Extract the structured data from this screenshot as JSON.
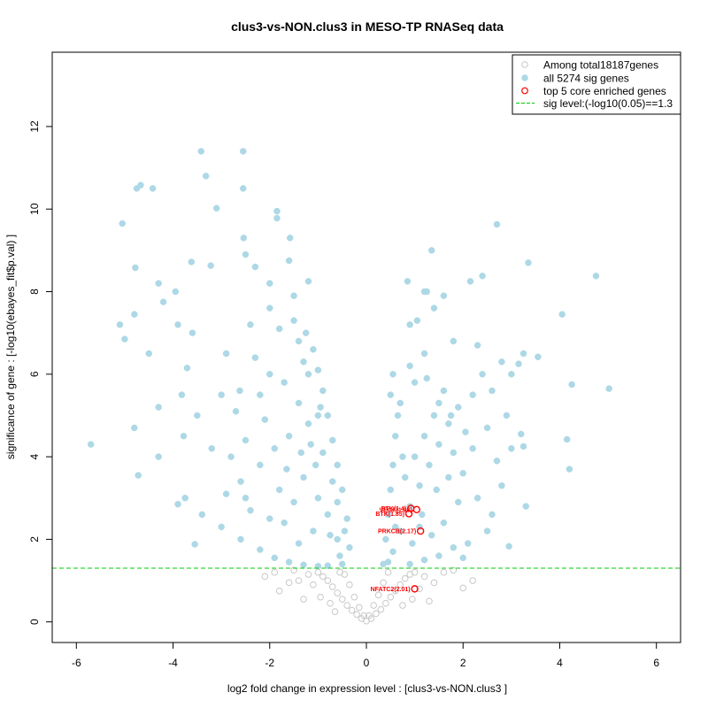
{
  "chart_data": {
    "type": "scatter",
    "title": "clus3-vs-NON.clus3 in MESO-TP RNASeq data",
    "xlabel": "log2 fold change in expression level : [clus3-vs-NON.clus3 ]",
    "ylabel": "significance of gene : [-log10(ebayes_fit$p.val) ]",
    "xlim": [
      -6.5,
      6.5
    ],
    "ylim": [
      -0.5,
      13.8
    ],
    "xticks": [
      -6,
      -4,
      -2,
      0,
      2,
      4,
      6
    ],
    "yticks": [
      0,
      2,
      4,
      6,
      8,
      10,
      12
    ],
    "xtick_labels": [
      "-6",
      "-4",
      "-2",
      "0",
      "2",
      "4",
      "6"
    ],
    "ytick_labels": [
      "0",
      "2",
      "4",
      "6",
      "8",
      "10",
      "12"
    ],
    "sig_threshold": 1.3,
    "legend": {
      "position": "top-right",
      "items": [
        {
          "label": "Among total18187genes",
          "marker": "open-circle",
          "color": "#c8c8c8"
        },
        {
          "label": "all 5274 sig genes",
          "marker": "filled-circle",
          "color": "#add8e6"
        },
        {
          "label": "top 5 core enriched genes",
          "marker": "open-circle",
          "color": "#ff0000"
        },
        {
          "label": "sig level:(-log10(0.05)==1.3",
          "marker": "dashed-line",
          "color": "#00cc00"
        }
      ]
    },
    "series": [
      {
        "name": "all 5274 sig genes",
        "color": "#add8e6",
        "points": [
          [
            -5.7,
            4.3
          ],
          [
            -5.05,
            9.65
          ],
          [
            -5.1,
            7.2
          ],
          [
            -5.0,
            6.85
          ],
          [
            -4.8,
            4.7
          ],
          [
            -4.72,
            3.55
          ],
          [
            -4.78,
            8.58
          ],
          [
            -4.75,
            10.5
          ],
          [
            -4.67,
            10.58
          ],
          [
            -4.42,
            10.5
          ],
          [
            -4.8,
            7.45
          ],
          [
            -4.5,
            6.5
          ],
          [
            -4.3,
            8.2
          ],
          [
            -4.3,
            5.2
          ],
          [
            -4.3,
            4.0
          ],
          [
            -4.2,
            7.75
          ],
          [
            -3.95,
            8.0
          ],
          [
            -3.9,
            7.2
          ],
          [
            -3.82,
            5.5
          ],
          [
            -3.78,
            4.5
          ],
          [
            -3.71,
            6.15
          ],
          [
            -3.62,
            8.72
          ],
          [
            -3.6,
            7.0
          ],
          [
            -3.5,
            5.0
          ],
          [
            -3.42,
            11.4
          ],
          [
            -3.32,
            10.8
          ],
          [
            -3.22,
            8.63
          ],
          [
            -3.1,
            10.02
          ],
          [
            -2.9,
            6.5
          ],
          [
            -2.62,
            5.6
          ],
          [
            -2.55,
            11.4
          ],
          [
            -2.55,
            10.5
          ],
          [
            -2.54,
            9.3
          ],
          [
            -2.5,
            8.9
          ],
          [
            -2.3,
            8.6
          ],
          [
            -2.0,
            8.2
          ],
          [
            -1.85,
            9.95
          ],
          [
            -1.85,
            9.78
          ],
          [
            -1.6,
            8.75
          ],
          [
            -1.58,
            9.3
          ],
          [
            -1.5,
            7.9
          ],
          [
            -1.3,
            6.3
          ],
          [
            -1.25,
            7.0
          ],
          [
            -1.2,
            6.0
          ],
          [
            -1.0,
            5.0
          ],
          [
            -0.6,
            2.0
          ],
          [
            -3.55,
            1.88
          ],
          [
            -2.9,
            3.1
          ],
          [
            -2.6,
            3.4
          ],
          [
            -2.2,
            3.8
          ],
          [
            -2.4,
            2.7
          ],
          [
            -3.2,
            4.2
          ],
          [
            -3.75,
            3.0
          ],
          [
            -3.9,
            2.85
          ],
          [
            -3.4,
            2.6
          ],
          [
            -3.0,
            2.3
          ],
          [
            -2.6,
            2.0
          ],
          [
            -2.2,
            1.75
          ],
          [
            -1.9,
            1.55
          ],
          [
            -1.6,
            1.45
          ],
          [
            -1.3,
            1.38
          ],
          [
            -1.0,
            1.35
          ],
          [
            -0.8,
            1.36
          ],
          [
            -0.5,
            1.4
          ],
          [
            -0.35,
            1.8
          ],
          [
            -0.4,
            2.5
          ],
          [
            -0.5,
            3.2
          ],
          [
            -0.6,
            3.8
          ],
          [
            -0.7,
            4.4
          ],
          [
            -0.8,
            5.0
          ],
          [
            -0.9,
            5.6
          ],
          [
            -1.0,
            6.1
          ],
          [
            -1.1,
            6.6
          ],
          [
            -1.5,
            7.3
          ],
          [
            -1.8,
            7.1
          ],
          [
            -2.0,
            6.0
          ],
          [
            -2.2,
            5.5
          ],
          [
            -1.7,
            5.8
          ],
          [
            -1.4,
            5.3
          ],
          [
            -1.2,
            4.8
          ],
          [
            -1.6,
            4.5
          ],
          [
            -1.9,
            4.2
          ],
          [
            -2.1,
            4.9
          ],
          [
            -2.5,
            4.4
          ],
          [
            -2.7,
            5.1
          ],
          [
            -2.3,
            6.4
          ],
          [
            -1.3,
            3.5
          ],
          [
            -1.0,
            3.0
          ],
          [
            -0.8,
            2.6
          ],
          [
            -1.1,
            2.2
          ],
          [
            -1.5,
            2.9
          ],
          [
            -1.8,
            3.2
          ],
          [
            -2.0,
            2.5
          ],
          [
            -1.4,
            1.9
          ],
          [
            -0.9,
            4.1
          ],
          [
            -1.05,
            3.8
          ],
          [
            -0.7,
            3.4
          ],
          [
            -0.6,
            2.9
          ],
          [
            -1.7,
            2.4
          ],
          [
            -2.5,
            3.0
          ],
          [
            -2.8,
            4.0
          ],
          [
            -3.0,
            5.5
          ],
          [
            -2.4,
            7.2
          ],
          [
            -2.0,
            7.6
          ],
          [
            -1.2,
            8.25
          ],
          [
            -1.4,
            6.8
          ],
          [
            -0.95,
            5.2
          ],
          [
            -1.15,
            4.3
          ],
          [
            -1.35,
            4.1
          ],
          [
            -1.65,
            3.7
          ],
          [
            -0.75,
            2.1
          ],
          [
            -0.55,
            1.6
          ],
          [
            -0.45,
            2.2
          ],
          [
            0.35,
            1.4
          ],
          [
            0.4,
            2.0
          ],
          [
            0.45,
            2.6
          ],
          [
            0.5,
            3.2
          ],
          [
            0.55,
            3.8
          ],
          [
            0.6,
            4.5
          ],
          [
            0.65,
            5.0
          ],
          [
            0.5,
            5.5
          ],
          [
            0.55,
            6.0
          ],
          [
            0.9,
            1.4
          ],
          [
            1.2,
            1.5
          ],
          [
            1.5,
            1.6
          ],
          [
            1.8,
            1.8
          ],
          [
            2.1,
            1.9
          ],
          [
            2.0,
            1.55
          ],
          [
            0.7,
            2.2
          ],
          [
            0.9,
            2.8
          ],
          [
            1.1,
            3.3
          ],
          [
            1.3,
            3.8
          ],
          [
            1.5,
            4.3
          ],
          [
            1.7,
            4.8
          ],
          [
            1.9,
            5.2
          ],
          [
            2.2,
            5.5
          ],
          [
            2.4,
            6.0
          ],
          [
            0.8,
            3.5
          ],
          [
            1.0,
            4.0
          ],
          [
            1.2,
            4.5
          ],
          [
            1.4,
            5.0
          ],
          [
            1.6,
            5.6
          ],
          [
            1.0,
            5.8
          ],
          [
            0.9,
            6.2
          ],
          [
            1.2,
            6.5
          ],
          [
            0.9,
            7.2
          ],
          [
            1.05,
            7.3
          ],
          [
            1.4,
            7.6
          ],
          [
            1.2,
            8.0
          ],
          [
            0.85,
            8.25
          ],
          [
            1.35,
            9.0
          ],
          [
            1.25,
            8.0
          ],
          [
            1.5,
            5.3
          ],
          [
            1.8,
            4.1
          ],
          [
            2.0,
            3.6
          ],
          [
            2.3,
            3.0
          ],
          [
            2.6,
            2.6
          ],
          [
            2.8,
            3.3
          ],
          [
            3.0,
            4.2
          ],
          [
            3.2,
            4.55
          ],
          [
            3.25,
            4.25
          ],
          [
            3.3,
            2.8
          ],
          [
            2.95,
            1.83
          ],
          [
            2.5,
            2.2
          ],
          [
            2.7,
            3.9
          ],
          [
            2.9,
            5.0
          ],
          [
            2.6,
            5.6
          ],
          [
            2.8,
            6.3
          ],
          [
            3.0,
            6.0
          ],
          [
            3.15,
            6.25
          ],
          [
            3.25,
            6.5
          ],
          [
            3.55,
            6.42
          ],
          [
            3.35,
            8.7
          ],
          [
            2.4,
            8.38
          ],
          [
            2.7,
            9.63
          ],
          [
            2.15,
            8.25
          ],
          [
            4.05,
            7.45
          ],
          [
            4.75,
            8.38
          ],
          [
            4.25,
            5.75
          ],
          [
            5.02,
            5.65
          ],
          [
            4.15,
            4.42
          ],
          [
            4.2,
            3.7
          ],
          [
            1.6,
            7.9
          ],
          [
            1.8,
            6.8
          ],
          [
            2.3,
            6.7
          ],
          [
            0.6,
            2.3
          ],
          [
            0.75,
            4.0
          ],
          [
            1.1,
            2.3
          ],
          [
            1.35,
            2.1
          ],
          [
            1.6,
            2.4
          ],
          [
            1.9,
            2.9
          ],
          [
            2.2,
            4.2
          ],
          [
            2.5,
            4.7
          ],
          [
            0.7,
            5.3
          ],
          [
            1.25,
            5.9
          ],
          [
            1.75,
            5.0
          ],
          [
            2.05,
            4.6
          ],
          [
            0.95,
            1.9
          ],
          [
            1.15,
            2.6
          ],
          [
            1.45,
            3.2
          ],
          [
            0.55,
            1.7
          ],
          [
            0.45,
            1.45
          ],
          [
            1.7,
            3.5
          ]
        ]
      },
      {
        "name": "Among total18187genes",
        "color": "#c8c8c8",
        "points": [
          [
            -0.1,
            0.08
          ],
          [
            -0.2,
            0.18
          ],
          [
            -0.3,
            0.28
          ],
          [
            -0.4,
            0.4
          ],
          [
            -0.5,
            0.55
          ],
          [
            -0.6,
            0.7
          ],
          [
            -0.7,
            0.85
          ],
          [
            -0.8,
            1.0
          ],
          [
            -0.9,
            1.1
          ],
          [
            -1.0,
            1.2
          ],
          [
            -1.2,
            1.15
          ],
          [
            -1.4,
            1.0
          ],
          [
            -1.5,
            1.25
          ],
          [
            -1.6,
            0.95
          ],
          [
            -1.8,
            0.75
          ],
          [
            -1.9,
            1.2
          ],
          [
            -0.25,
            0.6
          ],
          [
            -0.35,
            0.9
          ],
          [
            -0.45,
            1.15
          ],
          [
            -0.55,
            1.2
          ],
          [
            -0.15,
            0.35
          ],
          [
            -1.1,
            0.9
          ],
          [
            -0.95,
            0.6
          ],
          [
            -0.75,
            0.45
          ],
          [
            0.1,
            0.08
          ],
          [
            0.2,
            0.2
          ],
          [
            0.3,
            0.3
          ],
          [
            0.4,
            0.45
          ],
          [
            0.5,
            0.6
          ],
          [
            0.6,
            0.75
          ],
          [
            0.7,
            0.9
          ],
          [
            0.8,
            1.05
          ],
          [
            0.9,
            1.15
          ],
          [
            1.0,
            1.2
          ],
          [
            1.2,
            1.1
          ],
          [
            1.4,
            0.95
          ],
          [
            1.6,
            1.2
          ],
          [
            1.8,
            1.25
          ],
          [
            2.0,
            0.82
          ],
          [
            0.25,
            0.65
          ],
          [
            0.35,
            0.95
          ],
          [
            0.45,
            1.2
          ],
          [
            0.15,
            0.4
          ],
          [
            1.1,
            0.8
          ],
          [
            0.95,
            0.55
          ],
          [
            0.75,
            0.4
          ],
          [
            1.3,
            0.5
          ],
          [
            -1.3,
            0.55
          ],
          [
            0.0,
            0.02
          ],
          [
            -0.05,
            0.15
          ],
          [
            0.05,
            0.15
          ],
          [
            -2.1,
            1.1
          ],
          [
            2.2,
            1.0
          ],
          [
            -0.65,
            0.25
          ]
        ]
      },
      {
        "name": "top 5 core enriched genes",
        "color": "#ff0000",
        "points": [
          [
            1.04,
            2.72,
            "VEGF(1.96)"
          ],
          [
            0.92,
            2.75,
            "BTK(1.4)"
          ],
          [
            0.88,
            2.62,
            "BTK(1.85)"
          ],
          [
            1.12,
            2.2,
            "PRKCB(2.17)"
          ],
          [
            1.0,
            0.8,
            "NFATC2(2.01)"
          ]
        ]
      }
    ]
  }
}
